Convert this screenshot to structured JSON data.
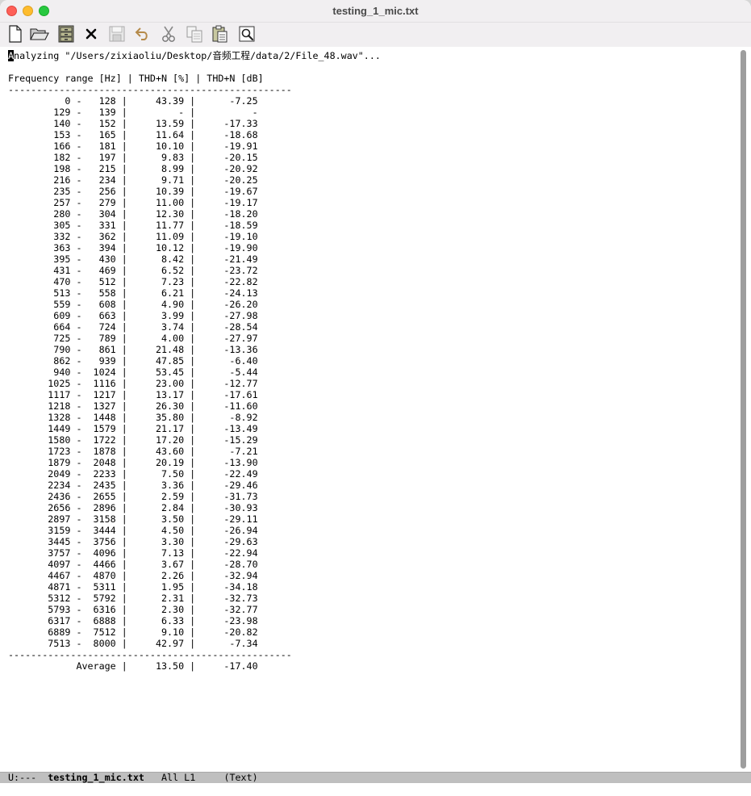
{
  "window": {
    "title": "testing_1_mic.txt"
  },
  "toolbar": {
    "buttons": [
      {
        "name": "new-file",
        "icon": "new-file-icon"
      },
      {
        "name": "open-folder",
        "icon": "folder-open-icon"
      },
      {
        "name": "dired",
        "icon": "file-cabinet-icon"
      },
      {
        "name": "kill-buffer",
        "icon": "close-icon"
      },
      {
        "name": "save",
        "icon": "save-icon"
      },
      {
        "name": "undo",
        "icon": "undo-icon"
      },
      {
        "name": "cut",
        "icon": "scissors-icon"
      },
      {
        "name": "copy",
        "icon": "copy-icon"
      },
      {
        "name": "paste",
        "icon": "paste-icon"
      },
      {
        "name": "search",
        "icon": "search-icon"
      }
    ]
  },
  "buffer": {
    "cursor_char": "A",
    "first_line_rest": "nalyzing \"/Users/zixiaoliu/Desktop/音频工程/data/2/File_48.wav\"...",
    "header": "Frequency range [Hz] | THD+N [%] | THD+N [dB]",
    "separator": "--------------------------------------------------",
    "rows": [
      {
        "from": "0",
        "to": "128",
        "pct": "43.39",
        "db": "-7.25"
      },
      {
        "from": "129",
        "to": "139",
        "pct": "-",
        "db": "-"
      },
      {
        "from": "140",
        "to": "152",
        "pct": "13.59",
        "db": "-17.33"
      },
      {
        "from": "153",
        "to": "165",
        "pct": "11.64",
        "db": "-18.68"
      },
      {
        "from": "166",
        "to": "181",
        "pct": "10.10",
        "db": "-19.91"
      },
      {
        "from": "182",
        "to": "197",
        "pct": "9.83",
        "db": "-20.15"
      },
      {
        "from": "198",
        "to": "215",
        "pct": "8.99",
        "db": "-20.92"
      },
      {
        "from": "216",
        "to": "234",
        "pct": "9.71",
        "db": "-20.25"
      },
      {
        "from": "235",
        "to": "256",
        "pct": "10.39",
        "db": "-19.67"
      },
      {
        "from": "257",
        "to": "279",
        "pct": "11.00",
        "db": "-19.17"
      },
      {
        "from": "280",
        "to": "304",
        "pct": "12.30",
        "db": "-18.20"
      },
      {
        "from": "305",
        "to": "331",
        "pct": "11.77",
        "db": "-18.59"
      },
      {
        "from": "332",
        "to": "362",
        "pct": "11.09",
        "db": "-19.10"
      },
      {
        "from": "363",
        "to": "394",
        "pct": "10.12",
        "db": "-19.90"
      },
      {
        "from": "395",
        "to": "430",
        "pct": "8.42",
        "db": "-21.49"
      },
      {
        "from": "431",
        "to": "469",
        "pct": "6.52",
        "db": "-23.72"
      },
      {
        "from": "470",
        "to": "512",
        "pct": "7.23",
        "db": "-22.82"
      },
      {
        "from": "513",
        "to": "558",
        "pct": "6.21",
        "db": "-24.13"
      },
      {
        "from": "559",
        "to": "608",
        "pct": "4.90",
        "db": "-26.20"
      },
      {
        "from": "609",
        "to": "663",
        "pct": "3.99",
        "db": "-27.98"
      },
      {
        "from": "664",
        "to": "724",
        "pct": "3.74",
        "db": "-28.54"
      },
      {
        "from": "725",
        "to": "789",
        "pct": "4.00",
        "db": "-27.97"
      },
      {
        "from": "790",
        "to": "861",
        "pct": "21.48",
        "db": "-13.36"
      },
      {
        "from": "862",
        "to": "939",
        "pct": "47.85",
        "db": "-6.40"
      },
      {
        "from": "940",
        "to": "1024",
        "pct": "53.45",
        "db": "-5.44"
      },
      {
        "from": "1025",
        "to": "1116",
        "pct": "23.00",
        "db": "-12.77"
      },
      {
        "from": "1117",
        "to": "1217",
        "pct": "13.17",
        "db": "-17.61"
      },
      {
        "from": "1218",
        "to": "1327",
        "pct": "26.30",
        "db": "-11.60"
      },
      {
        "from": "1328",
        "to": "1448",
        "pct": "35.80",
        "db": "-8.92"
      },
      {
        "from": "1449",
        "to": "1579",
        "pct": "21.17",
        "db": "-13.49"
      },
      {
        "from": "1580",
        "to": "1722",
        "pct": "17.20",
        "db": "-15.29"
      },
      {
        "from": "1723",
        "to": "1878",
        "pct": "43.60",
        "db": "-7.21"
      },
      {
        "from": "1879",
        "to": "2048",
        "pct": "20.19",
        "db": "-13.90"
      },
      {
        "from": "2049",
        "to": "2233",
        "pct": "7.50",
        "db": "-22.49"
      },
      {
        "from": "2234",
        "to": "2435",
        "pct": "3.36",
        "db": "-29.46"
      },
      {
        "from": "2436",
        "to": "2655",
        "pct": "2.59",
        "db": "-31.73"
      },
      {
        "from": "2656",
        "to": "2896",
        "pct": "2.84",
        "db": "-30.93"
      },
      {
        "from": "2897",
        "to": "3158",
        "pct": "3.50",
        "db": "-29.11"
      },
      {
        "from": "3159",
        "to": "3444",
        "pct": "4.50",
        "db": "-26.94"
      },
      {
        "from": "3445",
        "to": "3756",
        "pct": "3.30",
        "db": "-29.63"
      },
      {
        "from": "3757",
        "to": "4096",
        "pct": "7.13",
        "db": "-22.94"
      },
      {
        "from": "4097",
        "to": "4466",
        "pct": "3.67",
        "db": "-28.70"
      },
      {
        "from": "4467",
        "to": "4870",
        "pct": "2.26",
        "db": "-32.94"
      },
      {
        "from": "4871",
        "to": "5311",
        "pct": "1.95",
        "db": "-34.18"
      },
      {
        "from": "5312",
        "to": "5792",
        "pct": "2.31",
        "db": "-32.73"
      },
      {
        "from": "5793",
        "to": "6316",
        "pct": "2.30",
        "db": "-32.77"
      },
      {
        "from": "6317",
        "to": "6888",
        "pct": "6.33",
        "db": "-23.98"
      },
      {
        "from": "6889",
        "to": "7512",
        "pct": "9.10",
        "db": "-20.82"
      },
      {
        "from": "7513",
        "to": "8000",
        "pct": "42.97",
        "db": "-7.34"
      }
    ],
    "average": {
      "label": "Average",
      "pct": "13.50",
      "db": "-17.40"
    }
  },
  "modeline": {
    "status": "U:---",
    "buffer_name": "testing_1_mic.txt",
    "position": "All L1",
    "mode": "(Text)"
  },
  "colors": {
    "chrome": "#f1eff1",
    "modeline": "#bfbfbf",
    "close": "#fe5f57",
    "minimize": "#febc2e",
    "maximize": "#28c840"
  }
}
